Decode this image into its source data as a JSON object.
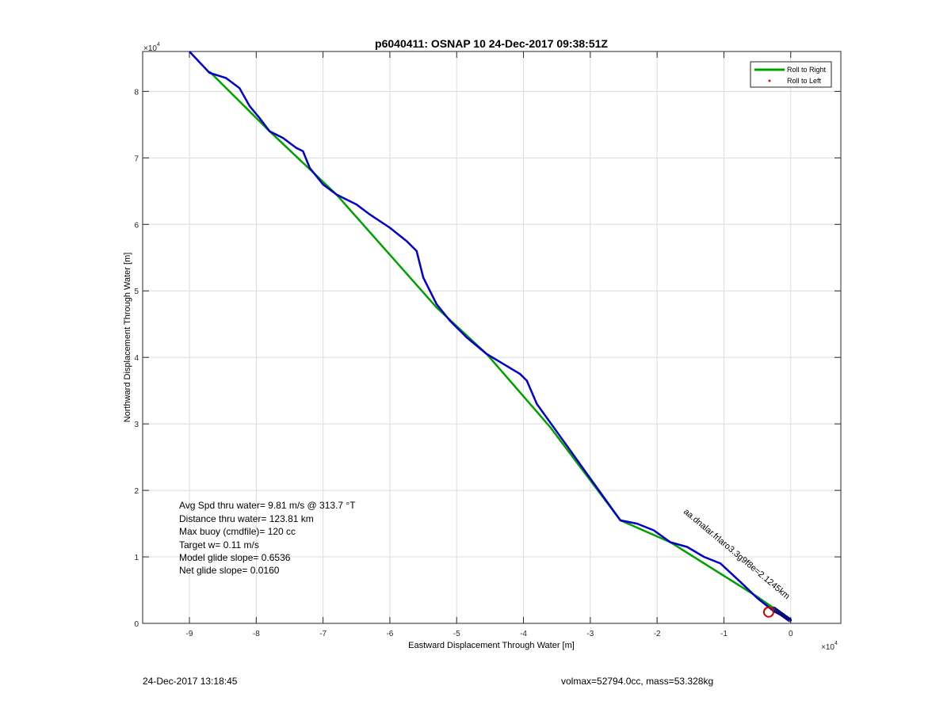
{
  "chart_data": {
    "type": "line",
    "title": "p6040411: OSNAP 10 24-Dec-2017 09:38:51Z",
    "xlabel": "Eastward Displacement Through Water [m]",
    "ylabel": "Northward Displacement Through Water [m]",
    "xlim": [
      -9.7,
      0.75
    ],
    "ylim": [
      0,
      8.6
    ],
    "axis_multiplier_label": "×10",
    "axis_multiplier_exp": "4",
    "xticks": [
      -9,
      -8,
      -7,
      -6,
      -5,
      -4,
      -3,
      -2,
      -1,
      0
    ],
    "yticks": [
      0,
      1,
      2,
      3,
      4,
      5,
      6,
      7,
      8
    ],
    "grid": true,
    "legend_position": "top-right",
    "series": [
      {
        "name": "Roll to Right",
        "color": "#00a000",
        "points": [
          [
            -8.7,
            8.3
          ],
          [
            -7.8,
            7.4
          ],
          [
            -6.8,
            6.45
          ],
          [
            -5.3,
            4.75
          ],
          [
            -4.55,
            4.05
          ],
          [
            -3.6,
            2.95
          ],
          [
            -2.55,
            1.55
          ],
          [
            -1.8,
            1.22
          ],
          [
            -0.5,
            0.4
          ],
          [
            0,
            0.05
          ]
        ]
      },
      {
        "name": "Roll to Left",
        "color": "#ff0000",
        "points": []
      },
      {
        "name": "",
        "color": "#0000c8",
        "points": [
          [
            -9.0,
            8.6
          ],
          [
            -8.7,
            8.28
          ],
          [
            -8.45,
            8.2
          ],
          [
            -8.25,
            8.05
          ],
          [
            -8.1,
            7.78
          ],
          [
            -7.95,
            7.6
          ],
          [
            -7.8,
            7.4
          ],
          [
            -7.6,
            7.3
          ],
          [
            -7.4,
            7.15
          ],
          [
            -7.3,
            7.1
          ],
          [
            -7.2,
            6.85
          ],
          [
            -7.0,
            6.6
          ],
          [
            -6.8,
            6.45
          ],
          [
            -6.7,
            6.4
          ],
          [
            -6.5,
            6.3
          ],
          [
            -6.3,
            6.15
          ],
          [
            -6.0,
            5.95
          ],
          [
            -5.75,
            5.75
          ],
          [
            -5.6,
            5.6
          ],
          [
            -5.5,
            5.2
          ],
          [
            -5.3,
            4.8
          ],
          [
            -5.1,
            4.55
          ],
          [
            -4.85,
            4.3
          ],
          [
            -4.55,
            4.05
          ],
          [
            -4.3,
            3.9
          ],
          [
            -4.05,
            3.75
          ],
          [
            -3.95,
            3.65
          ],
          [
            -3.8,
            3.3
          ],
          [
            -3.55,
            2.95
          ],
          [
            -3.3,
            2.6
          ],
          [
            -3.05,
            2.25
          ],
          [
            -2.8,
            1.9
          ],
          [
            -2.55,
            1.55
          ],
          [
            -2.3,
            1.5
          ],
          [
            -2.05,
            1.4
          ],
          [
            -1.8,
            1.22
          ],
          [
            -1.55,
            1.15
          ],
          [
            -1.3,
            1.0
          ],
          [
            -1.05,
            0.9
          ],
          [
            -0.75,
            0.62
          ],
          [
            -0.5,
            0.38
          ],
          [
            -0.25,
            0.18
          ],
          [
            0,
            0.05
          ]
        ]
      }
    ],
    "marker": {
      "color": "#cc0000",
      "x": -0.33,
      "y": 0.17
    },
    "curved_annotation": "aa.dnalar.frlaro3.3g9f8e=2.1245km",
    "annotations": [
      "Avg Spd thru water=  9.81 m/s @ 313.7 °T",
      "Distance thru water= 123.81 km",
      "Max buoy (cmdfile)= 120 cc",
      "Target w= 0.11 m/s",
      "Model glide slope= 0.6536",
      "Net glide slope= 0.0160"
    ]
  },
  "footer": {
    "left": "24-Dec-2017 13:18:45",
    "right": "volmax=52794.0cc, mass=53.328kg"
  }
}
